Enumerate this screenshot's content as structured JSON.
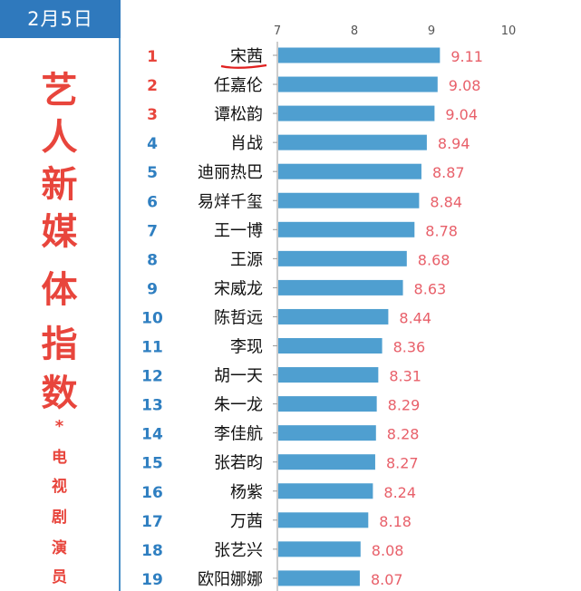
{
  "sidebar": {
    "date": "2月5日",
    "title_chars": [
      "艺",
      "人",
      "新",
      "媒",
      "体",
      "指",
      "数"
    ],
    "star": "*",
    "subtitle_chars": [
      "电",
      "视",
      "剧",
      "演",
      "员"
    ]
  },
  "colors": {
    "bar": "#4f9fd0",
    "value_label": "#e8606a",
    "rank_top3": "#e8453c",
    "rank_other": "#2f7fc1",
    "highlight_underline": "#e0201f",
    "axis_tick": "#555555"
  },
  "chart_data": {
    "type": "bar",
    "orientation": "horizontal",
    "xlim": [
      7,
      10
    ],
    "xticks": [
      7,
      8,
      9,
      10
    ],
    "grid": false,
    "ranks": [
      1,
      2,
      3,
      4,
      5,
      6,
      7,
      8,
      9,
      10,
      11,
      12,
      13,
      14,
      15,
      16,
      17,
      18,
      19
    ],
    "categories": [
      "宋茜",
      "任嘉伦",
      "谭松韵",
      "肖战",
      "迪丽热巴",
      "易烊千玺",
      "王一博",
      "王源",
      "宋威龙",
      "陈哲远",
      "李现",
      "胡一天",
      "朱一龙",
      "李佳航",
      "张若昀",
      "杨紫",
      "万茜",
      "张艺兴",
      "欧阳娜娜"
    ],
    "values": [
      9.11,
      9.08,
      9.04,
      8.94,
      8.87,
      8.84,
      8.78,
      8.68,
      8.63,
      8.44,
      8.36,
      8.31,
      8.29,
      8.28,
      8.27,
      8.24,
      8.18,
      8.08,
      8.07
    ],
    "value_labels": [
      "9.11",
      "9.08",
      "9.04",
      "8.94",
      "8.87",
      "8.84",
      "8.78",
      "8.68",
      "8.63",
      "8.44",
      "8.36",
      "8.31",
      "8.29",
      "8.28",
      "8.27",
      "8.24",
      "8.18",
      "8.08",
      "8.07"
    ],
    "highlighted_category": "宋茜"
  }
}
